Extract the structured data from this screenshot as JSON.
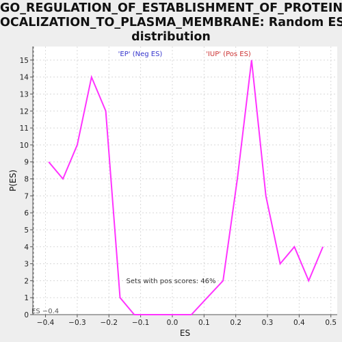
{
  "title_lines": [
    "GO_REGULATION_OF_ESTABLISHMENT_OF_PROTEIN_L",
    "OCALIZATION_TO_PLASMA_MEMBRANE: Random ES",
    "distribution"
  ],
  "colors": {
    "series": "#ff33ff",
    "neg_label": "#3333cc",
    "pos_label": "#cc3333",
    "grid": "#d8d8d8",
    "plot_bg": "#ffffff"
  },
  "chart_data": {
    "type": "line",
    "title": "GO_REGULATION_OF_ESTABLISHMENT_OF_PROTEIN_LOCALIZATION_TO_PLASMA_MEMBRANE: Random ES distribution",
    "xlabel": "ES",
    "ylabel": "P(ES)",
    "xlim": [
      -0.44,
      0.52
    ],
    "ylim": [
      0,
      15.8
    ],
    "x_ticks": [
      -0.4,
      -0.3,
      -0.2,
      -0.1,
      0.0,
      0.1,
      0.2,
      0.3,
      0.4,
      0.5
    ],
    "x_tick_labels": [
      "−0.4",
      "−0.3",
      "−0.2",
      "−0.1",
      "0.0",
      "0.1",
      "0.2",
      "0.3",
      "0.4",
      "0.5"
    ],
    "y_ticks": [
      0,
      1,
      2,
      3,
      4,
      5,
      6,
      7,
      8,
      9,
      10,
      11,
      12,
      13,
      14,
      15
    ],
    "grid": true,
    "series": [
      {
        "x": [
          -0.39,
          -0.345,
          -0.3,
          -0.255,
          -0.21,
          -0.165,
          -0.12,
          -0.075,
          -0.03,
          0.015,
          0.06,
          0.11,
          0.16,
          0.205,
          0.25,
          0.295,
          0.34,
          0.385,
          0.43,
          0.475
        ],
        "y": [
          9,
          8,
          10,
          14,
          12,
          1,
          0,
          0,
          0,
          0,
          0,
          1,
          2,
          8,
          15,
          7,
          3,
          4,
          2,
          4
        ]
      }
    ],
    "annotations": {
      "neg_label": "'EP' (Neg ES)",
      "pos_label": "'IUP' (Pos ES)",
      "pos_scores": "Sets with pos scores: 46%",
      "marker_label": "ES −0.4"
    }
  }
}
